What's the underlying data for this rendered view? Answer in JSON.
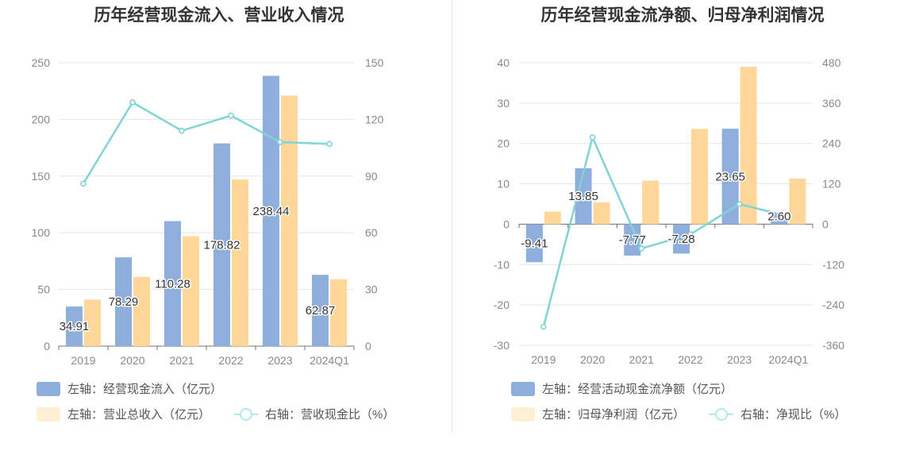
{
  "chart_data": [
    {
      "type": "bar",
      "title": "历年经营现金流入、营业收入情况",
      "categories": [
        "2019",
        "2020",
        "2021",
        "2022",
        "2023",
        "2024Q1"
      ],
      "series": [
        {
          "name": "左轴：经营现金流入（亿元）",
          "axis": "left",
          "kind": "bar",
          "color": "#8eaedb",
          "values": [
            34.91,
            78.29,
            110.28,
            178.82,
            238.44,
            62.87
          ],
          "labels": [
            "34.91",
            "78.29",
            "110.28",
            "178.82",
            "238.44",
            "62.87"
          ]
        },
        {
          "name": "左轴：营业总收入（亿元）",
          "axis": "left",
          "kind": "bar",
          "color": "#ffd899",
          "values": [
            41,
            61,
            97,
            147,
            221,
            59
          ]
        },
        {
          "name": "右轴：营收现金比（%）",
          "axis": "right",
          "kind": "line",
          "color": "#82d3d6",
          "values": [
            86,
            129,
            114,
            122,
            108,
            107
          ]
        }
      ],
      "left_axis": {
        "min": 0,
        "max": 250,
        "ticks": [
          "0",
          "50",
          "100",
          "150",
          "200",
          "250"
        ]
      },
      "right_axis": {
        "min": 0,
        "max": 150,
        "ticks": [
          "0",
          "30",
          "60",
          "90",
          "120",
          "150"
        ]
      },
      "grid": true,
      "legend": "bottom"
    },
    {
      "type": "bar",
      "title": "历年经营现金流净额、归母净利润情况",
      "categories": [
        "2019",
        "2020",
        "2021",
        "2022",
        "2023",
        "2024Q1"
      ],
      "series": [
        {
          "name": "左轴：经营活动现金流净额（亿元）",
          "axis": "left",
          "kind": "bar",
          "color": "#8eaedb",
          "values": [
            -9.41,
            13.85,
            -7.77,
            -7.28,
            23.65,
            2.6
          ],
          "labels": [
            "-9.41",
            "13.85",
            "-7.77",
            "-7.28",
            "23.65",
            "2.60"
          ]
        },
        {
          "name": "左轴：归母净利润（亿元）",
          "axis": "left",
          "kind": "bar",
          "color": "#ffd899",
          "values": [
            3.1,
            5.4,
            10.8,
            23.6,
            39.0,
            11.3
          ]
        },
        {
          "name": "右轴：净现比（%）",
          "axis": "right",
          "kind": "line",
          "color": "#82d3d6",
          "values": [
            -305,
            258,
            -72,
            -30,
            60,
            23
          ]
        }
      ],
      "left_axis": {
        "min": -30,
        "max": 40,
        "ticks": [
          "-30",
          "-20",
          "-10",
          "0",
          "10",
          "20",
          "30",
          "40"
        ]
      },
      "right_axis": {
        "min": -360,
        "max": 480,
        "ticks": [
          "-360",
          "-240",
          "-120",
          "0",
          "120",
          "240",
          "360",
          "480"
        ]
      },
      "grid": true,
      "legend": "bottom"
    }
  ]
}
